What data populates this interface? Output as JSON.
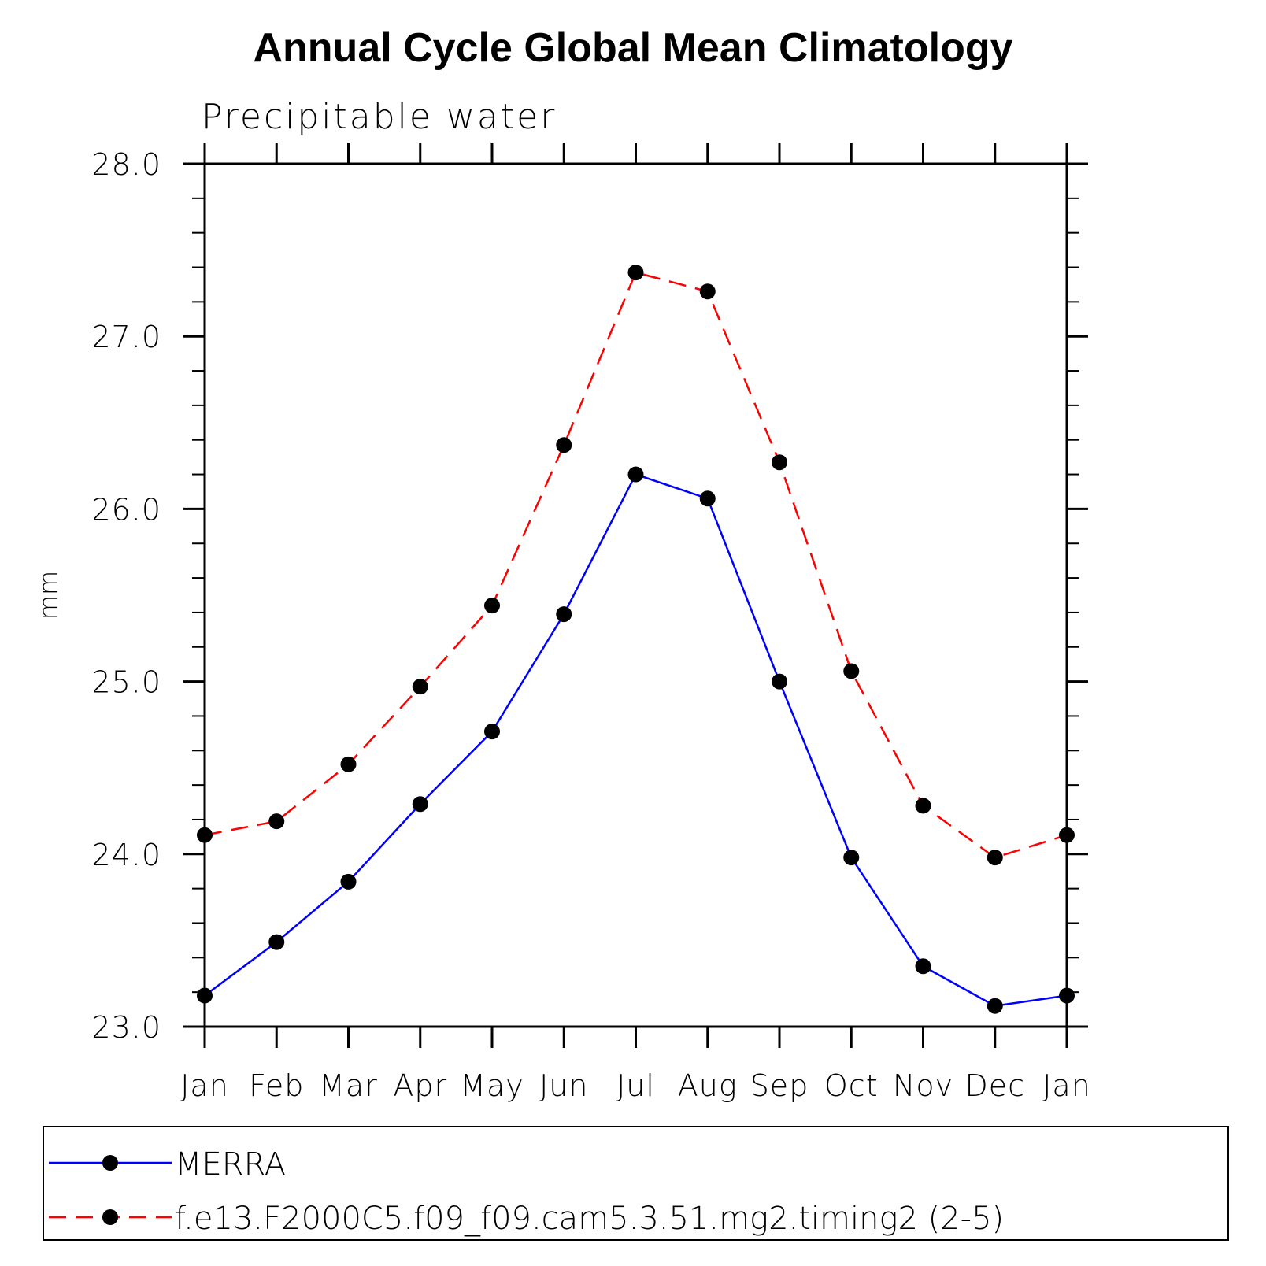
{
  "chart_data": {
    "type": "line",
    "title": "Annual Cycle Global Mean Climatology",
    "subtitle": "Precipitable water",
    "xlabel": "",
    "ylabel": "mm",
    "categories": [
      "Jan",
      "Feb",
      "Mar",
      "Apr",
      "May",
      "Jun",
      "Jul",
      "Aug",
      "Sep",
      "Oct",
      "Nov",
      "Dec",
      "Jan"
    ],
    "ylim": [
      23.0,
      28.0
    ],
    "yticks": [
      "23.0",
      "24.0",
      "25.0",
      "26.0",
      "27.0",
      "28.0"
    ],
    "y_minor_step": 0.2,
    "grid": false,
    "legend_position": "bottom",
    "series": [
      {
        "name": "MERRA",
        "color": "#0000ff",
        "line_style": "solid",
        "marker": "filled-circle",
        "values": [
          23.18,
          23.49,
          23.84,
          24.29,
          24.71,
          25.39,
          26.2,
          26.06,
          25.0,
          23.98,
          23.35,
          23.12,
          23.18
        ]
      },
      {
        "name": "f.e13.F2000C5.f09_f09.cam5.3.51.mg2.timing2 (2-5)",
        "color": "#ff0000",
        "line_style": "dashed",
        "marker": "filled-circle",
        "values": [
          24.11,
          24.19,
          24.52,
          24.97,
          25.44,
          26.37,
          27.37,
          27.26,
          26.27,
          25.06,
          24.28,
          23.98,
          24.11
        ]
      }
    ]
  }
}
